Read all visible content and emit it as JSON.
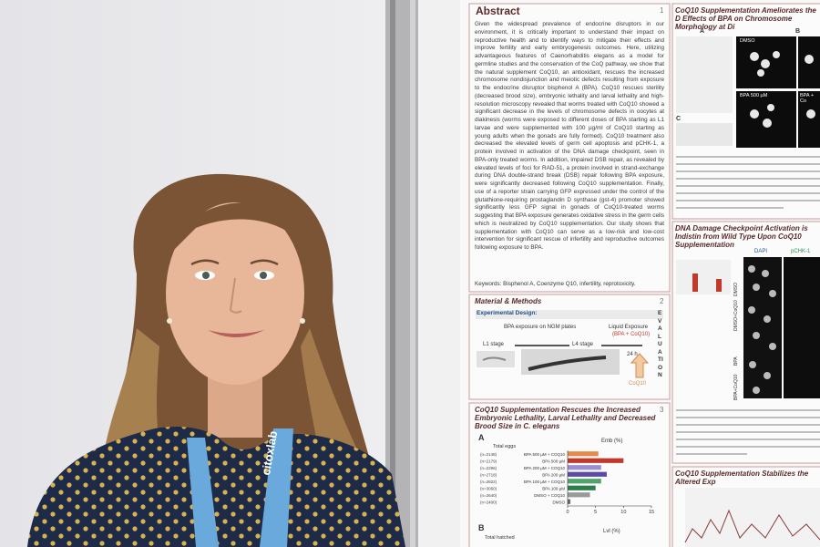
{
  "lanyard": "citoxlab",
  "abstract": {
    "title": "Abstract",
    "number": "1",
    "body": "Given the widespread prevalence of endocrine disruptors in our environment, it is critically important to understand their impact on reproductive health and to identify ways to mitigate their effects and improve fertility and early embryogenesis outcomes. Here, utilizing advantageous features of Caenorhabditis elegans as a model for germline studies and the conservation of the CoQ pathway, we show that the natural supplement CoQ10, an antioxidant, rescues the increased chromosome nondisjunction and meiotic defects resulting from exposure to the endocrine disruptor bisphenol A (BPA). CoQ10 rescues sterility (decreased brood size), embryonic lethality and larval lethality and high-resolution microscopy revealed that worms treated with CoQ10 showed a significant decrease in the levels of chromosome defects in oocytes at diakinesis (worms were exposed to different doses of BPA starting as L1 larvae and were supplemented with 100 µg/ml of CoQ10 starting as young adults when the gonads are fully formed). CoQ10 treatment also decreased the elevated levels of germ cell apoptosis and pCHK-1, a protein involved in activation of the DNA damage checkpoint, seen in BPA-only treated worms. In addition, impaired DSB repair, as revealed by elevated levels of foci for RAD-51, a protein involved in strand-exchange during DNA double-strand break (DSB) repair following BPA exposure, were significantly decreased following CoQ10 supplementation. Finally, use of a reporter strain carrying GFP expressed under the control of the glutathione-requiring prostaglandin D synthase (gst-4) promoter showed significantly less GFP signal in gonads of CoQ10-treated worms suggesting that BPA exposure generates oxidative stress in the germ cells which is neutralized by CoQ10 supplementation. Our study shows that supplementation with CoQ10 can serve as a low-risk and low-cost intervention for significant rescue of infertility and reproductive outcomes following exposure to BPA.",
    "keywords": "Keywords: Bisphenol A, Coenzyme Q10, infertility, reprotoxicity."
  },
  "methods": {
    "title": "Material & Methods",
    "number": "2",
    "subtitle": "Experimental Design:",
    "plates": "BPA exposure on NGM plates",
    "liquid": "Liquid Exposure",
    "liquid_detail": "(BPA + CoQ10)",
    "l1": "L1 stage",
    "l4": "L4 stage",
    "time": "24 h",
    "supplement": "CoQ10",
    "evaluation": "EVALUATION"
  },
  "results_lethality": {
    "title": "CoQ10 Supplementation Rescues the Increased Embryonic Lethality, Larval Lethality and Decreased Brood Size in C. elegans",
    "number": "3",
    "panel_a": "A",
    "panel_b": "B",
    "total_eggs": "Total eggs",
    "total_hatched": "Total hatched",
    "emb_label": "Emb (%)",
    "lvl_label": "Lvl (%)",
    "chart": {
      "categories": [
        "BPA 500 µM + COQ10",
        "BPA 500 µM",
        "BPA 200 µM + COQ10",
        "BPA 200 µM",
        "BPA 100 µM + COQ10",
        "BPA 100 µM",
        "DMSO + COQ10",
        "DMSO"
      ],
      "counts": [
        "(n=2148)",
        "(n=2179)",
        "(n=2296)",
        "(n=2718)",
        "(n=2822)",
        "(n=3060)",
        "(n=2640)",
        "(n=2400)"
      ],
      "values": [
        5.5,
        10,
        6,
        7,
        6,
        5,
        4,
        0.5
      ],
      "colors": [
        "#e58a4b",
        "#c0392b",
        "#9b8ed0",
        "#5b4aa8",
        "#4fa36b",
        "#2e7d4a",
        "#9a9a9a",
        "#6a6a6a"
      ],
      "xlim": [
        0,
        15
      ],
      "xticks": [
        0,
        5,
        10,
        15
      ]
    }
  },
  "results_morphology": {
    "title": "CoQ10 Supplementation Ameliorates the D Effects of BPA on Chromosome Morphology at Di",
    "panel_a": "A",
    "panel_b": "B",
    "panel_c": "C",
    "dmso": "DMSO",
    "bpa": "BPA 500 µM",
    "bpa_coq": "BPA + Co"
  },
  "results_checkpoint": {
    "title": "DNA Damage Checkpoint Activation is Indistin from Wild Type Upon CoQ10 Supplementation",
    "dapi": "DAPI",
    "pchk": "pCHK-1",
    "rows": [
      "DMSO",
      "DMSO+CoQ10",
      "BPA",
      "BPA+CoQ10"
    ]
  },
  "results_expression": {
    "title": "CoQ10 Supplementation Stabilizes the Altered Exp"
  }
}
